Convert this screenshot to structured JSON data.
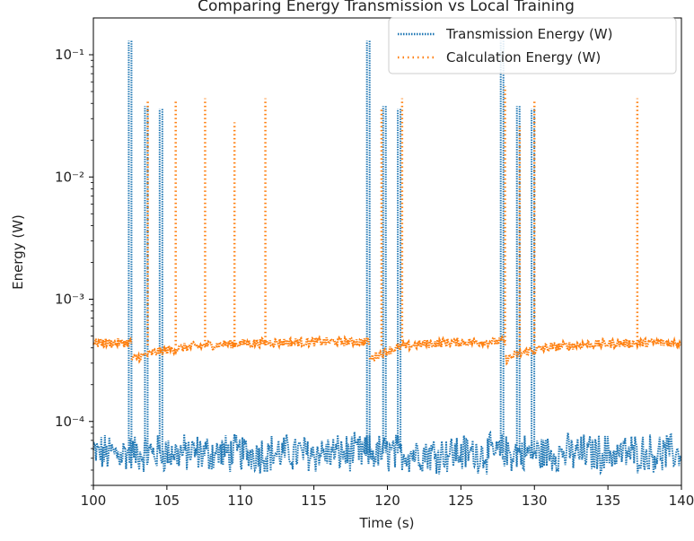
{
  "chart_data": {
    "type": "line",
    "title": "Comparing Energy Transmission vs Local Training",
    "xlabel": "Time (s)",
    "ylabel": "Energy (W)",
    "xlim": [
      100,
      140
    ],
    "ylim": [
      3e-05,
      0.2
    ],
    "yscale": "log",
    "xticks": [
      100,
      105,
      110,
      115,
      120,
      125,
      130,
      135,
      140
    ],
    "yticks": [
      {
        "value": 0.0001,
        "label": "10⁻⁴"
      },
      {
        "value": 0.001,
        "label": "10⁻³"
      },
      {
        "value": 0.01,
        "label": "10⁻²"
      },
      {
        "value": 0.1,
        "label": "10⁻¹"
      }
    ],
    "legend_position": "top-right",
    "grid": false,
    "series": [
      {
        "name": "Transmission Energy (W)",
        "color": "#1f77b4",
        "linestyle": "dotted",
        "baseline": 5.5e-05,
        "spikes": [
          {
            "x": 102.5,
            "y": 0.13
          },
          {
            "x": 103.6,
            "y": 0.038
          },
          {
            "x": 104.6,
            "y": 0.036
          },
          {
            "x": 118.7,
            "y": 0.13
          },
          {
            "x": 119.8,
            "y": 0.038
          },
          {
            "x": 120.8,
            "y": 0.036
          },
          {
            "x": 127.8,
            "y": 0.13
          },
          {
            "x": 128.9,
            "y": 0.038
          },
          {
            "x": 129.9,
            "y": 0.036
          }
        ]
      },
      {
        "name": "Calculation Energy (W)",
        "color": "#ff7f0e",
        "linestyle": "dotted",
        "segments": [
          {
            "x_start": 100,
            "x_end": 102.6,
            "y_start": 0.00044,
            "y_end": 0.00044
          },
          {
            "x_start": 102.6,
            "x_end": 118.8,
            "y_start": 0.00032,
            "y_end": 0.00045
          },
          {
            "x_start": 118.8,
            "x_end": 128.0,
            "y_start": 0.00032,
            "y_end": 0.00045
          },
          {
            "x_start": 128.0,
            "x_end": 140,
            "y_start": 0.00032,
            "y_end": 0.00044
          }
        ],
        "spikes": [
          {
            "x": 103.7,
            "y": 0.042
          },
          {
            "x": 105.6,
            "y": 0.043
          },
          {
            "x": 107.6,
            "y": 0.044
          },
          {
            "x": 109.6,
            "y": 0.028
          },
          {
            "x": 111.7,
            "y": 0.044
          },
          {
            "x": 119.6,
            "y": 0.036
          },
          {
            "x": 121.0,
            "y": 0.044
          },
          {
            "x": 128.0,
            "y": 0.055
          },
          {
            "x": 129.0,
            "y": 0.026
          },
          {
            "x": 130.0,
            "y": 0.042
          },
          {
            "x": 137.0,
            "y": 0.044
          }
        ]
      }
    ]
  }
}
